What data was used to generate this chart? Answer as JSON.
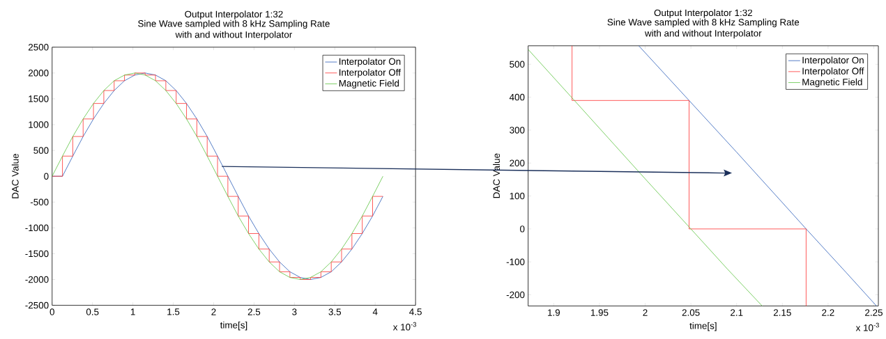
{
  "chart_data": [
    {
      "type": "line",
      "title": "Output Interpolator 1:32",
      "subtitle": "Sine Wave sampled with 8 kHz Sampling Rate with and without Interpolator",
      "xlabel": "time[s]",
      "ylabel": "DAC Value",
      "annotations": [
        "x 10$^{-3}$"
      ],
      "xlim": [
        0,
        4.5
      ],
      "ylim": [
        -2500,
        2500
      ],
      "xticks": [
        0,
        0.5,
        1,
        1.5,
        2,
        2.5,
        3,
        3.5,
        4,
        4.5
      ],
      "yticks": [
        -2500,
        -2000,
        -1500,
        -1000,
        -500,
        0,
        500,
        1000,
        1500,
        2000,
        2500
      ],
      "legend": "top right",
      "series": [
        {
          "name": "Interpolator On",
          "color": "#2a5cb8",
          "type": "line",
          "x": [
            0,
            0.128,
            0.256,
            0.384,
            0.512,
            0.64,
            0.768,
            0.896,
            1.024,
            1.152,
            1.28,
            1.408,
            1.536,
            1.664,
            1.792,
            1.92,
            2.048,
            2.176,
            2.304,
            2.432,
            2.56,
            2.688,
            2.816,
            2.944,
            3.072,
            3.2,
            3.328,
            3.456,
            3.584,
            3.712,
            3.84,
            3.968,
            4.096
          ],
          "values": [
            0,
            0,
            390,
            770,
            1110,
            1410,
            1660,
            1850,
            1960,
            2000,
            1960,
            1850,
            1660,
            1410,
            1110,
            770,
            390,
            0,
            -390,
            -770,
            -1110,
            -1410,
            -1660,
            -1850,
            -1960,
            -2000,
            -1960,
            -1850,
            -1660,
            -1410,
            -1110,
            -770,
            -390
          ]
        },
        {
          "name": "Interpolator Off",
          "color": "#ff3030",
          "type": "step",
          "x": [
            0,
            0.128,
            0.256,
            0.384,
            0.512,
            0.64,
            0.768,
            0.896,
            1.024,
            1.152,
            1.28,
            1.408,
            1.536,
            1.664,
            1.792,
            1.92,
            2.048,
            2.176,
            2.304,
            2.432,
            2.56,
            2.688,
            2.816,
            2.944,
            3.072,
            3.2,
            3.328,
            3.456,
            3.584,
            3.712,
            3.84,
            3.968,
            4.096
          ],
          "values": [
            0,
            390,
            770,
            1110,
            1410,
            1660,
            1850,
            1960,
            2000,
            1960,
            1850,
            1660,
            1410,
            1110,
            770,
            390,
            0,
            -390,
            -770,
            -1110,
            -1410,
            -1660,
            -1850,
            -1960,
            -2000,
            -1960,
            -1850,
            -1660,
            -1410,
            -1110,
            -770,
            -390,
            -390
          ]
        },
        {
          "name": "Magnetic Field",
          "color": "#5cc440",
          "type": "line",
          "x": [
            0,
            0.128,
            0.256,
            0.384,
            0.512,
            0.64,
            0.768,
            0.896,
            1.024,
            1.152,
            1.28,
            1.408,
            1.536,
            1.664,
            1.792,
            1.92,
            2.048,
            2.176,
            2.304,
            2.432,
            2.56,
            2.688,
            2.816,
            2.944,
            3.072,
            3.2,
            3.328,
            3.456,
            3.584,
            3.712,
            3.84,
            3.968,
            4.096
          ],
          "values": [
            0,
            390,
            770,
            1110,
            1410,
            1660,
            1850,
            1960,
            2000,
            1960,
            1850,
            1660,
            1410,
            1110,
            770,
            390,
            0,
            -390,
            -770,
            -1110,
            -1410,
            -1660,
            -1850,
            -1960,
            -2000,
            -1960,
            -1850,
            -1660,
            -1410,
            -1110,
            -770,
            -390,
            0
          ]
        }
      ]
    },
    {
      "type": "line",
      "title": "Output Interpolator 1:32",
      "subtitle": "Sine Wave sampled with 8 kHz Sampling Rate with and without Interpolator",
      "xlabel": "time[s]",
      "ylabel": "DAC Value",
      "annotations": [
        "x 10$^{-3}$"
      ],
      "xlim": [
        1.872,
        2.255
      ],
      "ylim": [
        -234,
        556
      ],
      "xticks": [
        1.9,
        1.95,
        2,
        2.05,
        2.1,
        2.15,
        2.2,
        2.25
      ],
      "yticks": [
        -200,
        -100,
        0,
        100,
        200,
        300,
        400,
        500
      ],
      "legend": "top right",
      "series": [
        {
          "name": "Interpolator On",
          "color": "#2a5cb8",
          "type": "line",
          "x": [
            1.993,
            2.048,
            2.1,
            2.15,
            2.176,
            2.22,
            2.253
          ],
          "values": [
            556,
            390,
            233,
            80,
            0,
            -133,
            -234
          ]
        },
        {
          "name": "Interpolator Off",
          "color": "#ff3030",
          "type": "line",
          "x": [
            1.92,
            1.92,
            2.048,
            2.048,
            2.176,
            2.176
          ],
          "values": [
            556,
            390,
            390,
            0,
            0,
            -234
          ]
        },
        {
          "name": "Magnetic Field",
          "color": "#5cc440",
          "type": "line",
          "x": [
            1.872,
            1.92,
            1.96,
            2.0,
            2.05,
            2.09,
            2.128
          ],
          "values": [
            545,
            398,
            275,
            152,
            0,
            -122,
            -234
          ]
        }
      ]
    }
  ]
}
